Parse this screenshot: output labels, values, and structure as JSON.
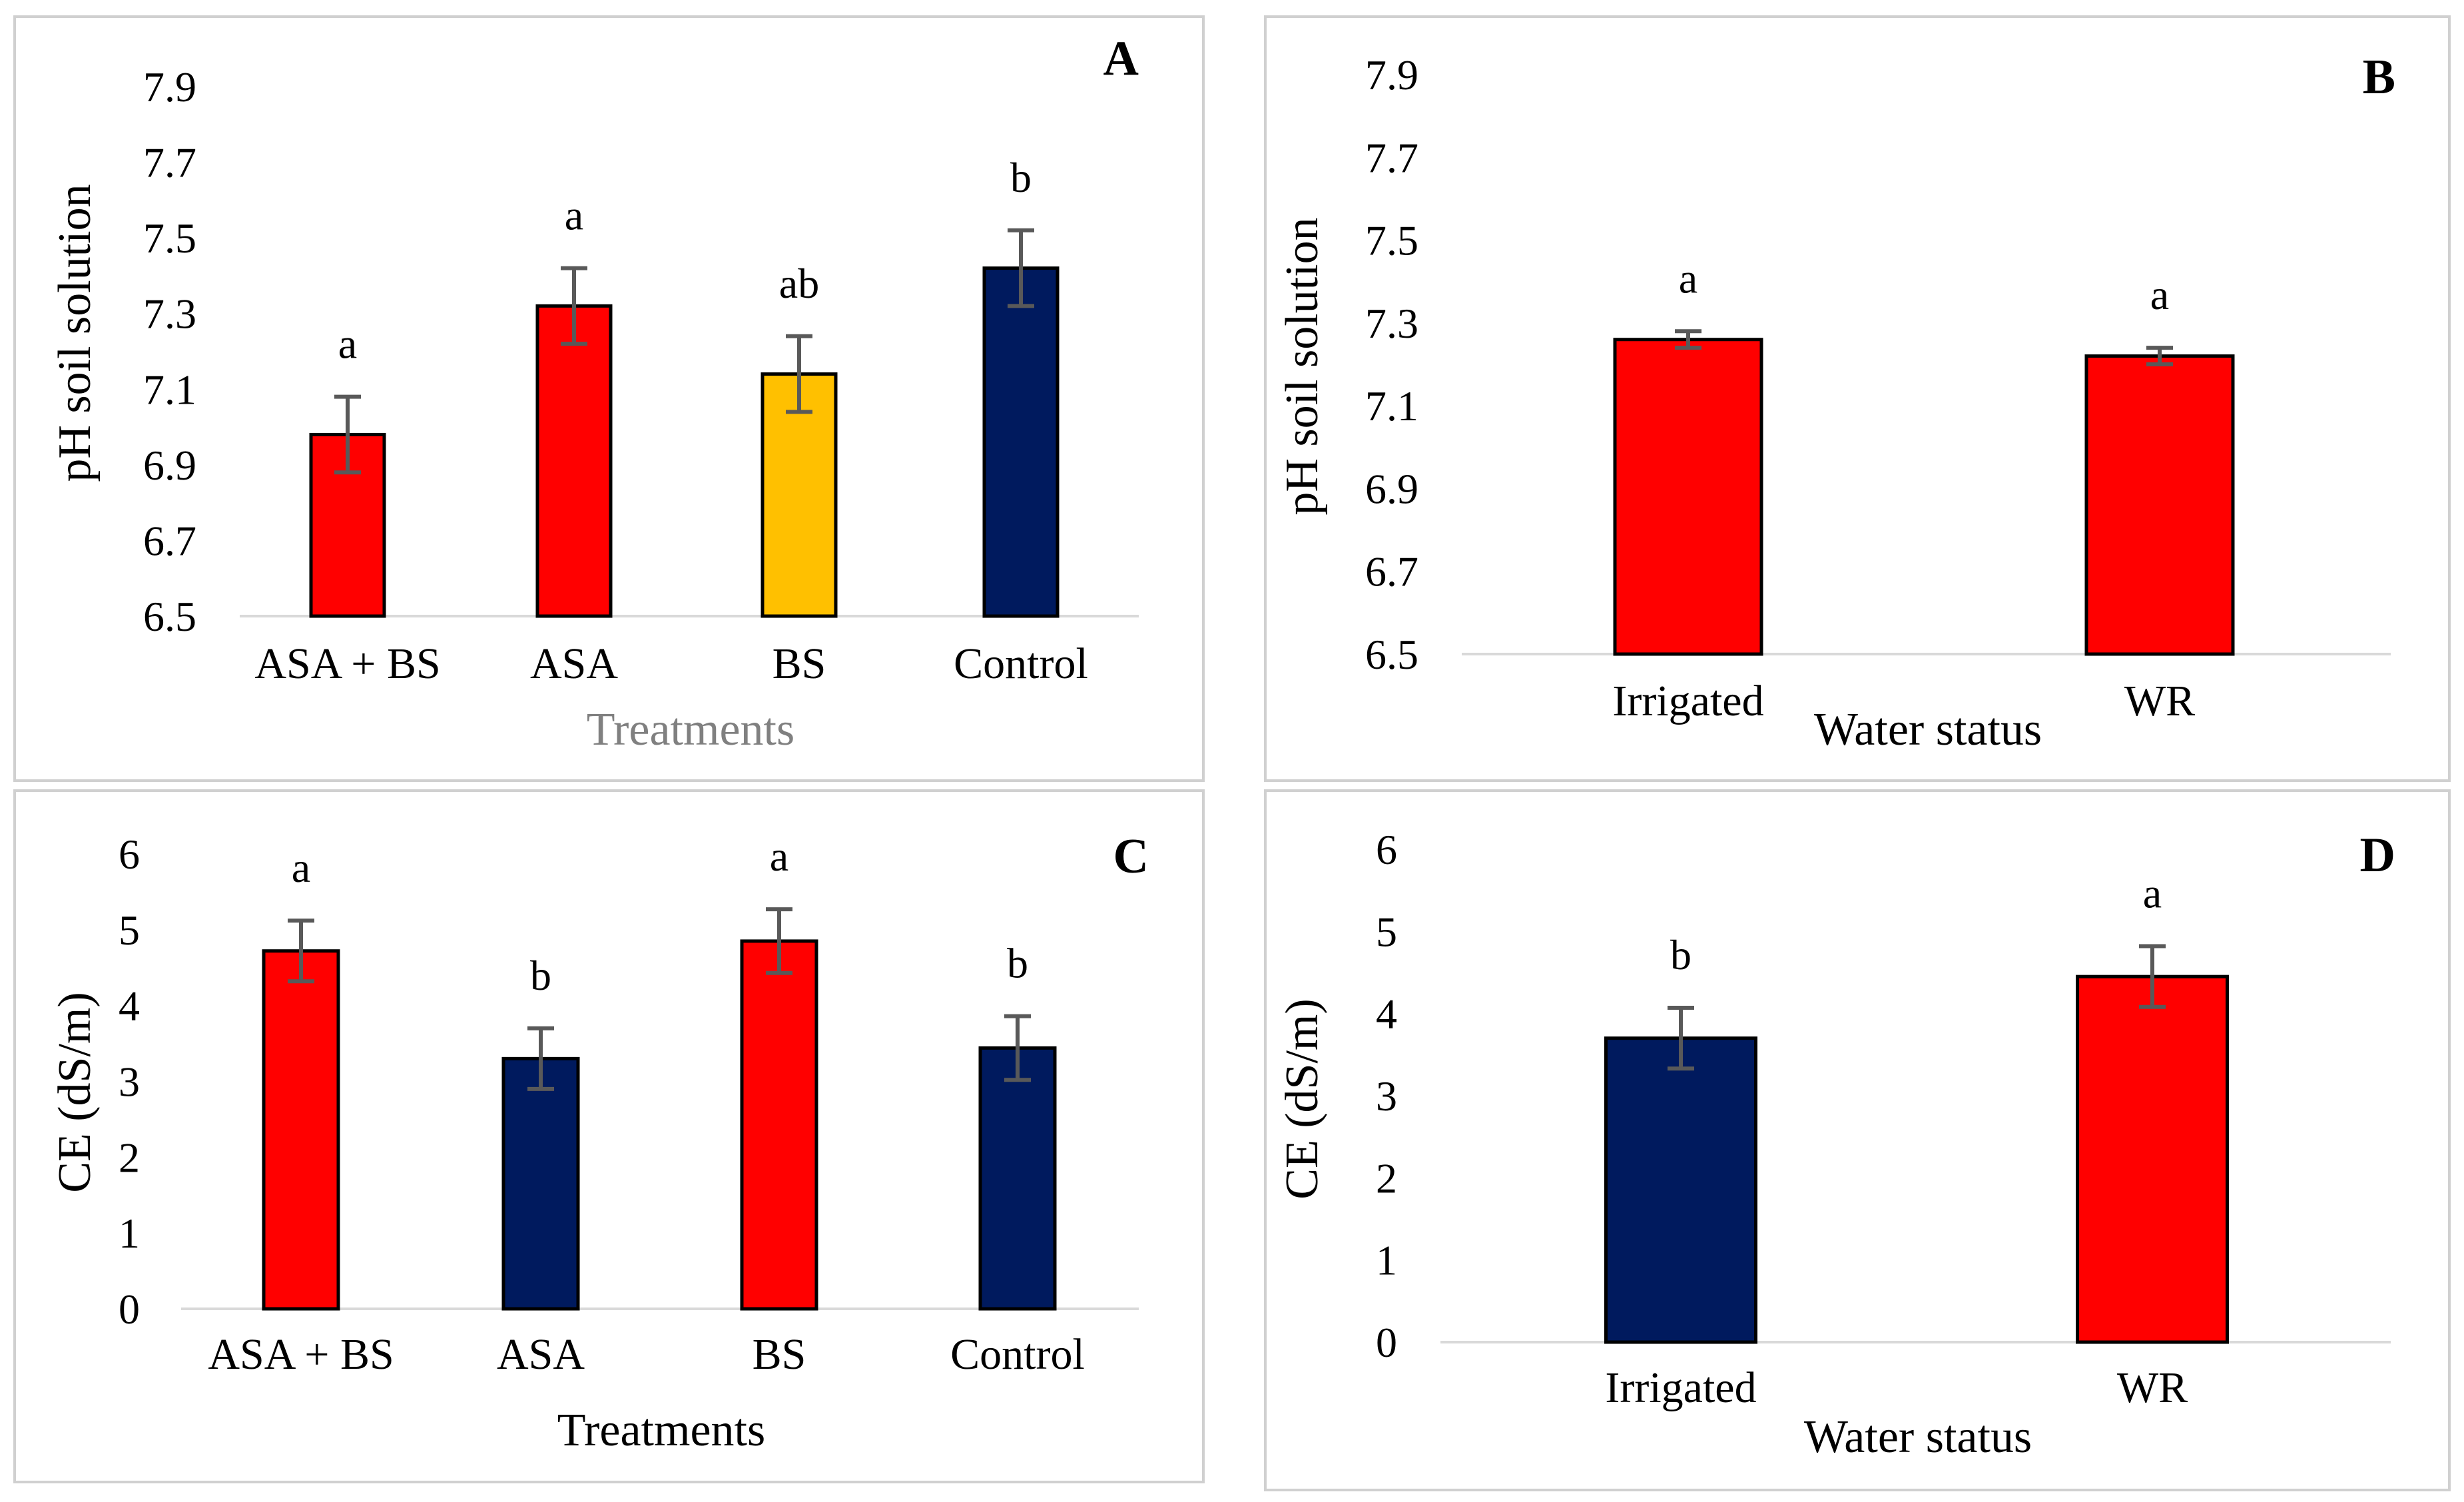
{
  "colors": {
    "red": "#FF0000",
    "navy": "#001A5E",
    "gold": "#FFC000",
    "error_bar": "#595959",
    "axis": "#D9D9D9",
    "panel_border": "#D0D0D0"
  },
  "chart_data": [
    {
      "panel": "A",
      "type": "bar",
      "ylabel": "pH soil solution",
      "xlabel": "Treatments",
      "categories": [
        "ASA + BS",
        "ASA",
        "BS",
        "Control"
      ],
      "values": [
        6.98,
        7.32,
        7.14,
        7.42
      ],
      "errors": [
        0.1,
        0.1,
        0.1,
        0.1
      ],
      "letters": [
        "a",
        "a",
        "ab",
        "b"
      ],
      "colors": [
        "red",
        "red",
        "gold",
        "navy"
      ],
      "ylim": [
        6.5,
        7.9
      ],
      "yticks": [
        "6.5",
        "6.7",
        "6.9",
        "7.1",
        "7.3",
        "7.5",
        "7.7",
        "7.9"
      ]
    },
    {
      "panel": "B",
      "type": "bar",
      "ylabel": "pH soil solution",
      "xlabel": "Water status",
      "categories": [
        "Irrigated",
        "WR"
      ],
      "values": [
        7.26,
        7.22
      ],
      "errors": [
        0.02,
        0.02
      ],
      "letters": [
        "a",
        "a"
      ],
      "colors": [
        "red",
        "red"
      ],
      "ylim": [
        6.5,
        7.9
      ],
      "yticks": [
        "6.5",
        "6.7",
        "6.9",
        "7.1",
        "7.3",
        "7.5",
        "7.7",
        "7.9"
      ]
    },
    {
      "panel": "C",
      "type": "bar",
      "ylabel": "CE (dS/m)",
      "xlabel": "Treatments",
      "categories": [
        "ASA + BS",
        "ASA",
        "BS",
        "Control"
      ],
      "values": [
        4.72,
        3.3,
        4.85,
        3.44
      ],
      "errors": [
        0.4,
        0.4,
        0.42,
        0.42
      ],
      "letters": [
        "a",
        "b",
        "a",
        "b"
      ],
      "colors": [
        "red",
        "navy",
        "red",
        "navy"
      ],
      "ylim": [
        0,
        6
      ],
      "yticks": [
        "0",
        "1",
        "2",
        "3",
        "4",
        "5",
        "6"
      ]
    },
    {
      "panel": "D",
      "type": "bar",
      "ylabel": "CE (dS/m)",
      "xlabel": "Water status",
      "categories": [
        "Irrigated",
        "WR"
      ],
      "values": [
        3.7,
        4.45
      ],
      "errors": [
        0.37,
        0.37
      ],
      "letters": [
        "b",
        "a"
      ],
      "colors": [
        "navy",
        "red"
      ],
      "ylim": [
        0,
        6
      ],
      "yticks": [
        "0",
        "1",
        "2",
        "3",
        "4",
        "5",
        "6"
      ]
    }
  ]
}
